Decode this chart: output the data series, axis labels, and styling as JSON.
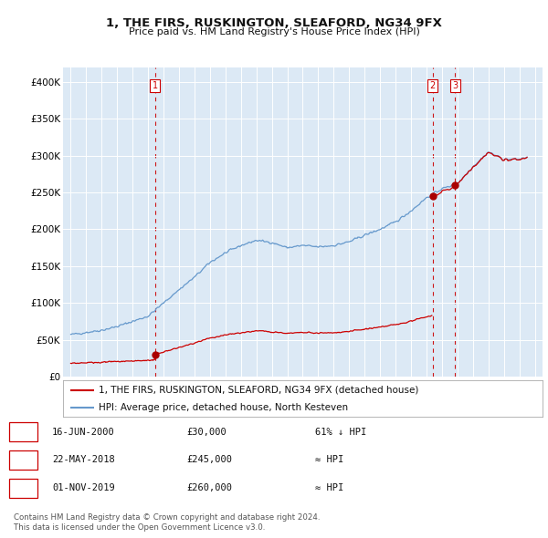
{
  "title": "1, THE FIRS, RUSKINGTON, SLEAFORD, NG34 9FX",
  "subtitle": "Price paid vs. HM Land Registry's House Price Index (HPI)",
  "background_color": "#ffffff",
  "plot_background": "#dce9f5",
  "hpi_color": "#6699cc",
  "price_color": "#cc0000",
  "vline_color": "#cc0000",
  "transactions": [
    {
      "num": 1,
      "date_x": 2000.46,
      "price": 30000,
      "label": "16-JUN-2000",
      "price_str": "£30,000",
      "relation": "61% ↓ HPI"
    },
    {
      "num": 2,
      "date_x": 2018.39,
      "price": 245000,
      "label": "22-MAY-2018",
      "price_str": "£245,000",
      "relation": "≈ HPI"
    },
    {
      "num": 3,
      "date_x": 2019.84,
      "price": 260000,
      "label": "01-NOV-2019",
      "price_str": "£260,000",
      "relation": "≈ HPI"
    }
  ],
  "legend_entries": [
    "1, THE FIRS, RUSKINGTON, SLEAFORD, NG34 9FX (detached house)",
    "HPI: Average price, detached house, North Kesteven"
  ],
  "footer_lines": [
    "Contains HM Land Registry data © Crown copyright and database right 2024.",
    "This data is licensed under the Open Government Licence v3.0."
  ],
  "ylim": [
    0,
    420000
  ],
  "xlim": [
    1994.5,
    2025.5
  ],
  "yticks": [
    0,
    50000,
    100000,
    150000,
    200000,
    250000,
    300000,
    350000,
    400000
  ],
  "ytick_labels": [
    "£0",
    "£50K",
    "£100K",
    "£150K",
    "£200K",
    "£250K",
    "£300K",
    "£350K",
    "£400K"
  ],
  "hpi_anchors_x": [
    1995,
    1996,
    1997,
    1998,
    1999,
    2000,
    2001,
    2002,
    2003,
    2004,
    2005,
    2006,
    2007,
    2008,
    2009,
    2010,
    2011,
    2012,
    2013,
    2014,
    2015,
    2016,
    2017,
    2018,
    2019,
    2020,
    2021,
    2022,
    2023,
    2024,
    2024.5
  ],
  "hpi_anchors_y": [
    57000,
    60000,
    63000,
    68000,
    75000,
    82000,
    100000,
    118000,
    135000,
    155000,
    168000,
    178000,
    185000,
    182000,
    175000,
    178000,
    176000,
    178000,
    183000,
    192000,
    200000,
    210000,
    225000,
    243000,
    255000,
    262000,
    285000,
    305000,
    295000,
    295000,
    298000
  ],
  "price_anchors_x": [
    1995,
    2000.45,
    2000.46,
    2018.38,
    2018.39,
    2019.83,
    2019.84,
    2024.5
  ],
  "price_anchors_y": [
    18000,
    22000,
    30000,
    96000,
    245000,
    257000,
    260000,
    295000
  ]
}
